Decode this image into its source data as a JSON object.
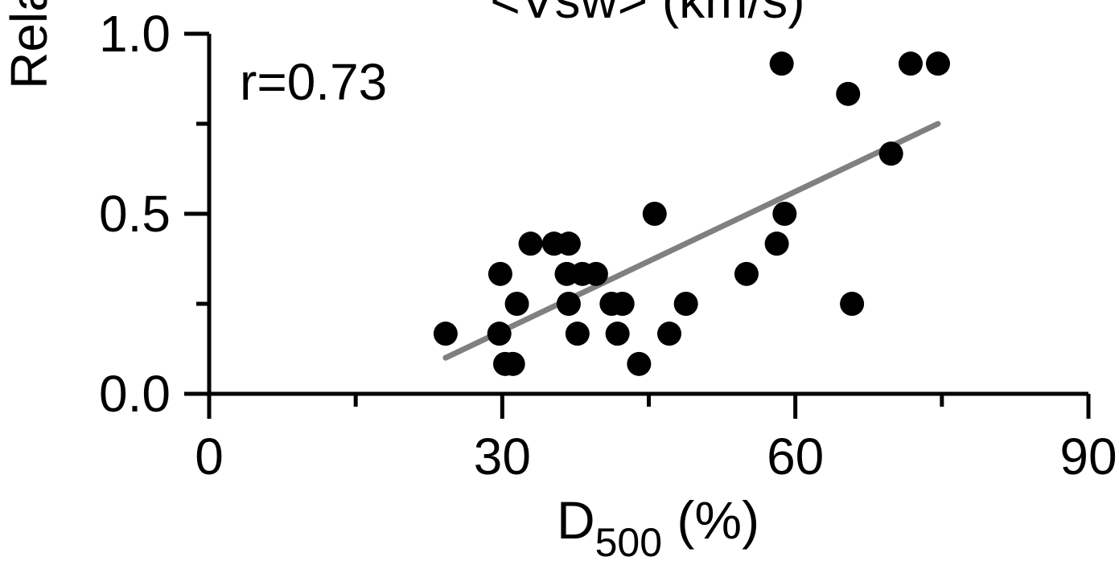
{
  "chart_data": {
    "type": "scatter",
    "title_fragment": "<Vsw>  (km/s)",
    "ylabel_fragment": "Rela",
    "xlabel": {
      "main": "D",
      "sub": "500",
      "suffix": " (%)"
    },
    "annotation": "r=0.73",
    "xlim": [
      0,
      90
    ],
    "ylim": [
      0,
      1.0
    ],
    "x_ticks": [
      0,
      30,
      60,
      90
    ],
    "x_tick_labels": [
      "0",
      "30",
      "60",
      "90"
    ],
    "x_minor_ticks": [
      15,
      45,
      75
    ],
    "y_ticks": [
      0.0,
      0.5,
      1.0
    ],
    "y_tick_labels": [
      "0.0",
      "0.5",
      "1.0"
    ],
    "y_minor_ticks": [
      0.25,
      0.75
    ],
    "grid": false,
    "points": [
      {
        "x": 24.2,
        "y": 0.167
      },
      {
        "x": 29.7,
        "y": 0.167
      },
      {
        "x": 29.8,
        "y": 0.333
      },
      {
        "x": 30.3,
        "y": 0.083
      },
      {
        "x": 31.1,
        "y": 0.083
      },
      {
        "x": 31.5,
        "y": 0.25
      },
      {
        "x": 32.9,
        "y": 0.417
      },
      {
        "x": 35.3,
        "y": 0.417
      },
      {
        "x": 36.8,
        "y": 0.417
      },
      {
        "x": 36.6,
        "y": 0.333
      },
      {
        "x": 38.2,
        "y": 0.333
      },
      {
        "x": 39.6,
        "y": 0.333
      },
      {
        "x": 36.8,
        "y": 0.25
      },
      {
        "x": 37.7,
        "y": 0.167
      },
      {
        "x": 41.2,
        "y": 0.25
      },
      {
        "x": 42.3,
        "y": 0.25
      },
      {
        "x": 41.8,
        "y": 0.167
      },
      {
        "x": 44.0,
        "y": 0.083
      },
      {
        "x": 45.6,
        "y": 0.5
      },
      {
        "x": 47.1,
        "y": 0.167
      },
      {
        "x": 48.8,
        "y": 0.25
      },
      {
        "x": 55.0,
        "y": 0.333
      },
      {
        "x": 58.1,
        "y": 0.417
      },
      {
        "x": 58.6,
        "y": 0.917
      },
      {
        "x": 58.9,
        "y": 0.5
      },
      {
        "x": 65.4,
        "y": 0.833
      },
      {
        "x": 65.8,
        "y": 0.25
      },
      {
        "x": 69.8,
        "y": 0.667
      },
      {
        "x": 71.8,
        "y": 0.917
      },
      {
        "x": 74.6,
        "y": 0.917
      }
    ],
    "fit_line": {
      "x": [
        24.2,
        74.6
      ],
      "y": [
        0.1,
        0.75
      ],
      "color": "#808080"
    },
    "marker_color": "#000000"
  }
}
